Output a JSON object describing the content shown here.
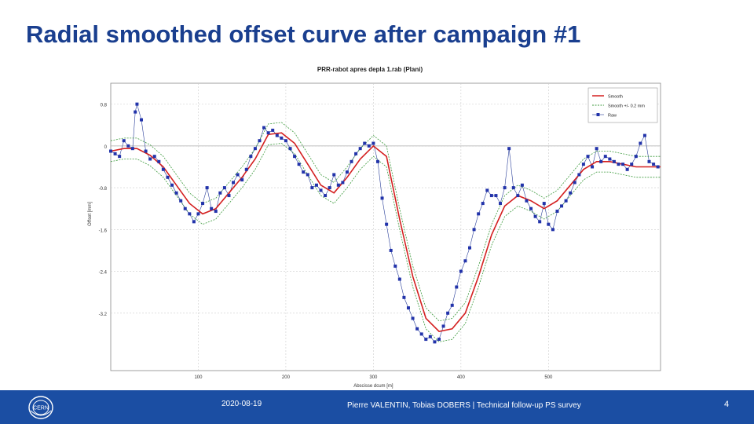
{
  "slide": {
    "title": "Radial smoothed offset curve after campaign #1"
  },
  "footer": {
    "date": "2020-08-19",
    "credits": "Pierre VALENTIN, Tobias DOBERS | Technical follow-up PS survey",
    "page": "4",
    "logo_text": "CERN"
  },
  "colors": {
    "title": "#1a3f8f",
    "footer_bg": "#1b4ea3",
    "smooth": "#d42020",
    "band": "#3c9a3c",
    "raw": "#2233aa"
  },
  "chart_data": {
    "type": "line",
    "title": "PRR-rabot apres depla 1.rab (Plani)",
    "xlabel": "Abscisse dcum [m]",
    "ylabel": "Offset [mm]",
    "xlim": [
      0,
      628
    ],
    "ylim": [
      -4.3,
      1.2
    ],
    "x_ticks": [
      100,
      200,
      300,
      400,
      500
    ],
    "x_tick_labels": [
      "100",
      "200",
      "300",
      "400",
      "500"
    ],
    "y_ticks": [
      0.8,
      0,
      -0.8,
      -1.6,
      -2.4,
      -3.2
    ],
    "y_tick_labels": [
      "0.8",
      "0",
      "-0.8",
      "-1.6",
      "-2.4",
      "-3.2"
    ],
    "grid": true,
    "legend_position": "top-right",
    "legend": [
      "Smooth",
      "Smooth +/- 0.2 mm",
      "Raw"
    ],
    "band_offset": 0.2,
    "series": [
      {
        "name": "Smooth",
        "style": "line",
        "x": [
          0,
          15,
          30,
          45,
          60,
          75,
          90,
          105,
          120,
          135,
          150,
          165,
          180,
          195,
          210,
          225,
          240,
          255,
          270,
          285,
          300,
          315,
          330,
          345,
          360,
          375,
          390,
          405,
          420,
          435,
          450,
          465,
          480,
          495,
          510,
          525,
          540,
          555,
          570,
          585,
          600,
          615,
          628
        ],
        "y": [
          -0.1,
          -0.05,
          -0.05,
          -0.18,
          -0.4,
          -0.75,
          -1.1,
          -1.3,
          -1.2,
          -0.9,
          -0.6,
          -0.25,
          0.22,
          0.25,
          0.05,
          -0.35,
          -0.75,
          -0.9,
          -0.6,
          -0.25,
          0.0,
          -0.2,
          -1.4,
          -2.5,
          -3.3,
          -3.55,
          -3.5,
          -3.2,
          -2.5,
          -1.7,
          -1.15,
          -0.95,
          -1.05,
          -1.2,
          -1.05,
          -0.75,
          -0.45,
          -0.3,
          -0.3,
          -0.35,
          -0.4,
          -0.4,
          -0.4
        ]
      },
      {
        "name": "Raw",
        "style": "markers+line",
        "x": [
          0,
          5,
          10,
          15,
          20,
          25,
          28,
          30,
          35,
          40,
          45,
          50,
          55,
          60,
          65,
          70,
          75,
          80,
          85,
          90,
          95,
          100,
          105,
          110,
          115,
          120,
          125,
          130,
          135,
          140,
          145,
          150,
          155,
          160,
          165,
          170,
          175,
          180,
          185,
          190,
          195,
          200,
          205,
          210,
          215,
          220,
          225,
          230,
          235,
          240,
          245,
          250,
          255,
          260,
          265,
          270,
          275,
          280,
          285,
          290,
          295,
          300,
          305,
          310,
          315,
          320,
          325,
          330,
          335,
          340,
          345,
          350,
          355,
          360,
          365,
          370,
          375,
          380,
          385,
          390,
          395,
          400,
          405,
          410,
          415,
          420,
          425,
          430,
          435,
          440,
          445,
          450,
          455,
          460,
          465,
          470,
          475,
          480,
          485,
          490,
          495,
          500,
          505,
          510,
          515,
          520,
          525,
          530,
          535,
          540,
          545,
          550,
          555,
          560,
          565,
          570,
          575,
          580,
          585,
          590,
          595,
          600,
          605,
          610,
          615,
          620,
          625
        ],
        "y": [
          -0.1,
          -0.15,
          -0.2,
          0.1,
          0.0,
          -0.05,
          0.65,
          0.8,
          0.5,
          -0.1,
          -0.25,
          -0.2,
          -0.3,
          -0.45,
          -0.6,
          -0.75,
          -0.9,
          -1.05,
          -1.2,
          -1.3,
          -1.45,
          -1.3,
          -1.1,
          -0.8,
          -1.2,
          -1.25,
          -0.9,
          -0.8,
          -0.95,
          -0.7,
          -0.55,
          -0.65,
          -0.45,
          -0.2,
          -0.05,
          0.1,
          0.35,
          0.25,
          0.3,
          0.2,
          0.15,
          0.1,
          -0.05,
          -0.2,
          -0.35,
          -0.5,
          -0.55,
          -0.8,
          -0.75,
          -0.85,
          -0.95,
          -0.8,
          -0.55,
          -0.75,
          -0.7,
          -0.5,
          -0.3,
          -0.15,
          -0.05,
          0.05,
          0.0,
          0.05,
          -0.3,
          -1.0,
          -1.5,
          -2.0,
          -2.3,
          -2.55,
          -2.9,
          -3.1,
          -3.3,
          -3.5,
          -3.6,
          -3.7,
          -3.65,
          -3.75,
          -3.7,
          -3.45,
          -3.2,
          -3.05,
          -2.7,
          -2.4,
          -2.2,
          -1.95,
          -1.6,
          -1.3,
          -1.1,
          -0.85,
          -0.95,
          -0.95,
          -1.1,
          -0.8,
          -0.05,
          -0.8,
          -0.95,
          -0.75,
          -1.05,
          -1.2,
          -1.35,
          -1.45,
          -1.1,
          -1.5,
          -1.6,
          -1.25,
          -1.15,
          -1.05,
          -0.9,
          -0.7,
          -0.55,
          -0.35,
          -0.2,
          -0.4,
          -0.05,
          -0.3,
          -0.2,
          -0.25,
          -0.3,
          -0.35,
          -0.35,
          -0.45,
          -0.35,
          -0.2,
          0.05,
          0.2,
          -0.3,
          -0.35,
          -0.4
        ]
      }
    ]
  }
}
